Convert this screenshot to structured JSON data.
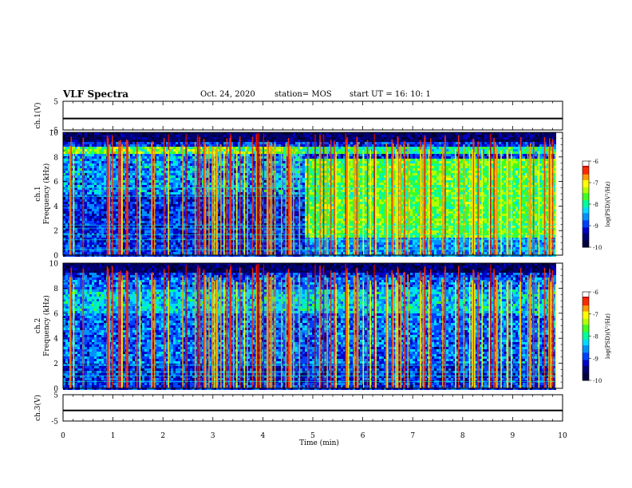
{
  "header": {
    "title": "VLF Spectra",
    "date": "Oct. 24, 2020",
    "station": "station= MOS",
    "start": "start UT =   16: 10: 1"
  },
  "colorbar": {
    "label": "log(PSD)(V²/Hz)",
    "ticks": [
      "-6",
      "-7",
      "-8",
      "-9",
      "-10"
    ],
    "colors": [
      "#000080",
      "#0000ff",
      "#0080ff",
      "#00ffff",
      "#00ff80",
      "#80ff00",
      "#ffff00",
      "#ff8000",
      "#ff0000",
      "#ffffff"
    ]
  },
  "chart_data": [
    {
      "type": "line",
      "panel": "ch.1",
      "ylabel": "ch.1(V)",
      "ylim": [
        -5,
        5
      ],
      "yticks": [
        "5",
        "-5"
      ],
      "x": [
        0,
        10
      ],
      "y": [
        -1,
        -1
      ]
    },
    {
      "type": "heatmap",
      "panel": "ch.1",
      "ylabel": "ch.1\nFrequency (kHz)",
      "ylim": [
        0,
        10
      ],
      "yticks": [
        "0",
        "2",
        "4",
        "6",
        "8",
        "10"
      ],
      "xlim": [
        0,
        10
      ],
      "data_extent_x": [
        0,
        9.85
      ],
      "zlim": [
        -10,
        -6
      ],
      "notes": "Broadband impulsive (sferic) emissions; after ~4.8 min enhanced 2-7 kHz band intensity"
    },
    {
      "type": "heatmap",
      "panel": "ch.2",
      "ylabel": "ch.2\nFrequency (kHz)",
      "ylim": [
        0,
        10
      ],
      "yticks": [
        "0",
        "2",
        "4",
        "6",
        "8",
        "10"
      ],
      "xlim": [
        0,
        10
      ],
      "data_extent_x": [
        0,
        9.85
      ],
      "zlim": [
        -10,
        -6
      ]
    },
    {
      "type": "line",
      "panel": "ch.3",
      "ylabel": "ch.3(V)",
      "ylim": [
        -5,
        5
      ],
      "yticks": [
        "5",
        "-5"
      ],
      "x": [
        0,
        10
      ],
      "y": [
        -1,
        -1
      ]
    }
  ],
  "xaxis": {
    "label": "Time (min)",
    "ticks": [
      "0",
      "1",
      "2",
      "3",
      "4",
      "5",
      "6",
      "7",
      "8",
      "9",
      "10"
    ],
    "xlim": [
      0,
      10
    ]
  }
}
